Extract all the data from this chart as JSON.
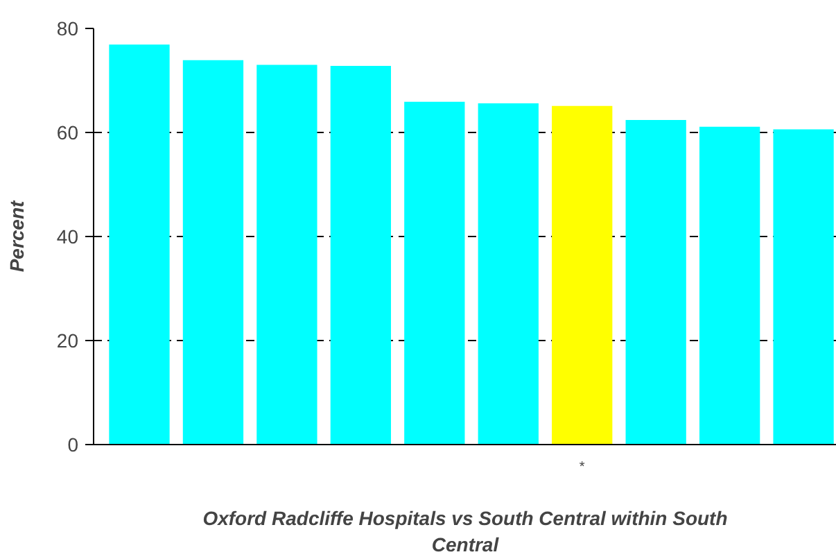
{
  "chart_data": {
    "type": "bar",
    "xlabel": "Oxford Radcliffe Hospitals vs South Central within South Central",
    "ylabel": "Percent",
    "categories": [
      null,
      null,
      null,
      null,
      null,
      null,
      "*",
      null,
      null,
      null
    ],
    "values": [
      76.9,
      73.9,
      73.0,
      72.8,
      65.9,
      65.6,
      65.1,
      62.4,
      61.1,
      60.6
    ],
    "colors": [
      "#00ffff",
      "#00ffff",
      "#00ffff",
      "#00ffff",
      "#00ffff",
      "#00ffff",
      "#ffff00",
      "#00ffff",
      "#00ffff",
      "#00ffff"
    ],
    "ylim": [
      0,
      80
    ],
    "yticks": [
      0,
      20,
      40,
      60,
      80
    ],
    "grid": "y",
    "line_style": "dashed"
  }
}
